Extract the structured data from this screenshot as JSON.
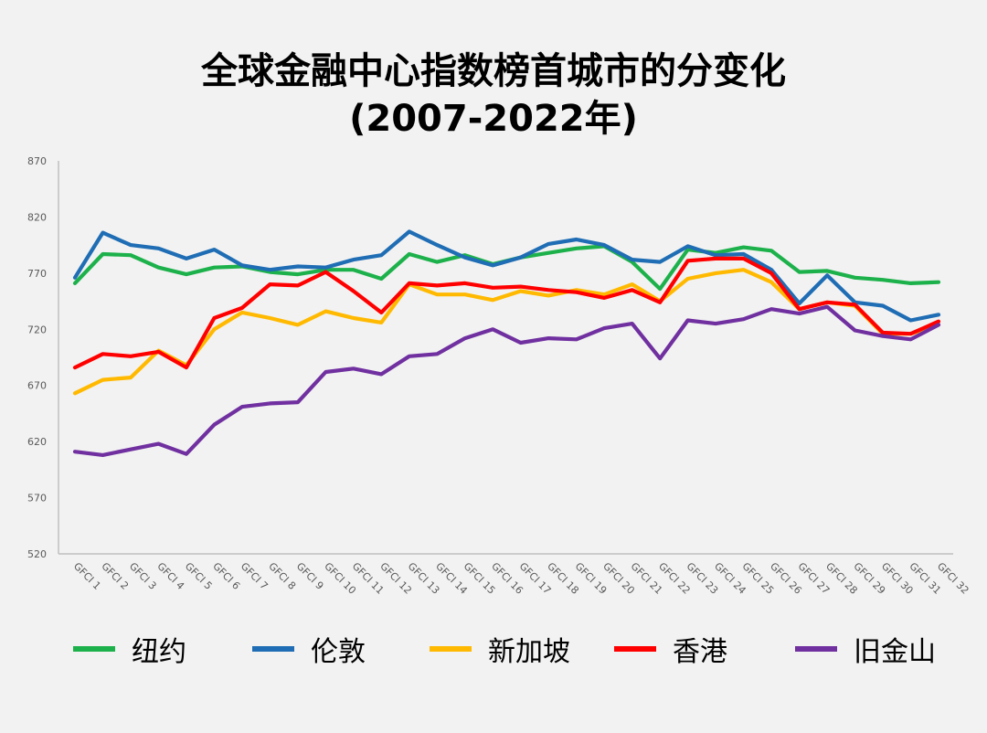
{
  "title_line1": "全球金融中心指数榜首城市的分变化",
  "title_line2": "(2007-2022年)",
  "chart_data": {
    "type": "line",
    "title": "全球金融中心指数榜首城市的分变化 (2007-2022年)",
    "ylim": [
      520,
      870
    ],
    "yticks": [
      "870",
      "820",
      "770",
      "720",
      "670",
      "620",
      "570",
      "520"
    ],
    "categories": [
      "GFCI 1",
      "GFCI 2",
      "GFCI 3",
      "GFCI 4",
      "GFCI 5",
      "GFCI 6",
      "GFCI 7",
      "GFCI 8",
      "GFCI 9",
      "GFCI 10",
      "GFCI 11",
      "GFCI 12",
      "GFCI 13",
      "GFCI 14",
      "GFCI 15",
      "GFCI 16",
      "GFCI 17",
      "GFCI 18",
      "GFCI 19",
      "GFCI 20",
      "GFCI 21",
      "GFCI 22",
      "GFCI 23",
      "GFCI 24",
      "GFCI 25",
      "GFCI 26",
      "GFCI 27",
      "GFCI 28",
      "GFCI 29",
      "GFCI 30",
      "GFCI 31",
      "GFCI 32"
    ],
    "grid": false,
    "legend_position": "bottom",
    "series": [
      {
        "name": "纽约",
        "color": "#1db14b",
        "values": [
          761,
          787,
          786,
          775,
          769,
          775,
          776,
          771,
          769,
          773,
          773,
          765,
          787,
          780,
          786,
          778,
          784,
          788,
          792,
          794,
          780,
          756,
          791,
          788,
          793,
          790,
          771,
          772,
          766,
          764,
          761,
          762
        ]
      },
      {
        "name": "伦敦",
        "color": "#1f6db4",
        "values": [
          766,
          806,
          795,
          792,
          783,
          791,
          777,
          773,
          776,
          775,
          782,
          786,
          807,
          795,
          784,
          777,
          784,
          796,
          800,
          795,
          782,
          780,
          794,
          786,
          787,
          773,
          743,
          768,
          744,
          741,
          728,
          733
        ]
      },
      {
        "name": "新加坡",
        "color": "#ffb900",
        "values": [
          663,
          675,
          677,
          701,
          688,
          720,
          735,
          730,
          724,
          736,
          730,
          726,
          760,
          751,
          751,
          746,
          754,
          750,
          755,
          751,
          760,
          745,
          765,
          770,
          773,
          762,
          738,
          744,
          741,
          716,
          716,
          724
        ]
      },
      {
        "name": "香港",
        "color": "#ff0000",
        "values": [
          686,
          698,
          696,
          700,
          686,
          730,
          739,
          760,
          759,
          771,
          754,
          735,
          761,
          759,
          761,
          757,
          758,
          755,
          753,
          748,
          755,
          744,
          781,
          783,
          783,
          770,
          738,
          744,
          742,
          717,
          716,
          727
        ]
      },
      {
        "name": "旧金山",
        "color": "#7030a0",
        "values": [
          611,
          608,
          613,
          618,
          609,
          635,
          651,
          654,
          655,
          682,
          685,
          680,
          696,
          698,
          712,
          720,
          708,
          712,
          711,
          721,
          725,
          694,
          728,
          725,
          729,
          738,
          734,
          740,
          719,
          714,
          711,
          724
        ]
      }
    ]
  }
}
